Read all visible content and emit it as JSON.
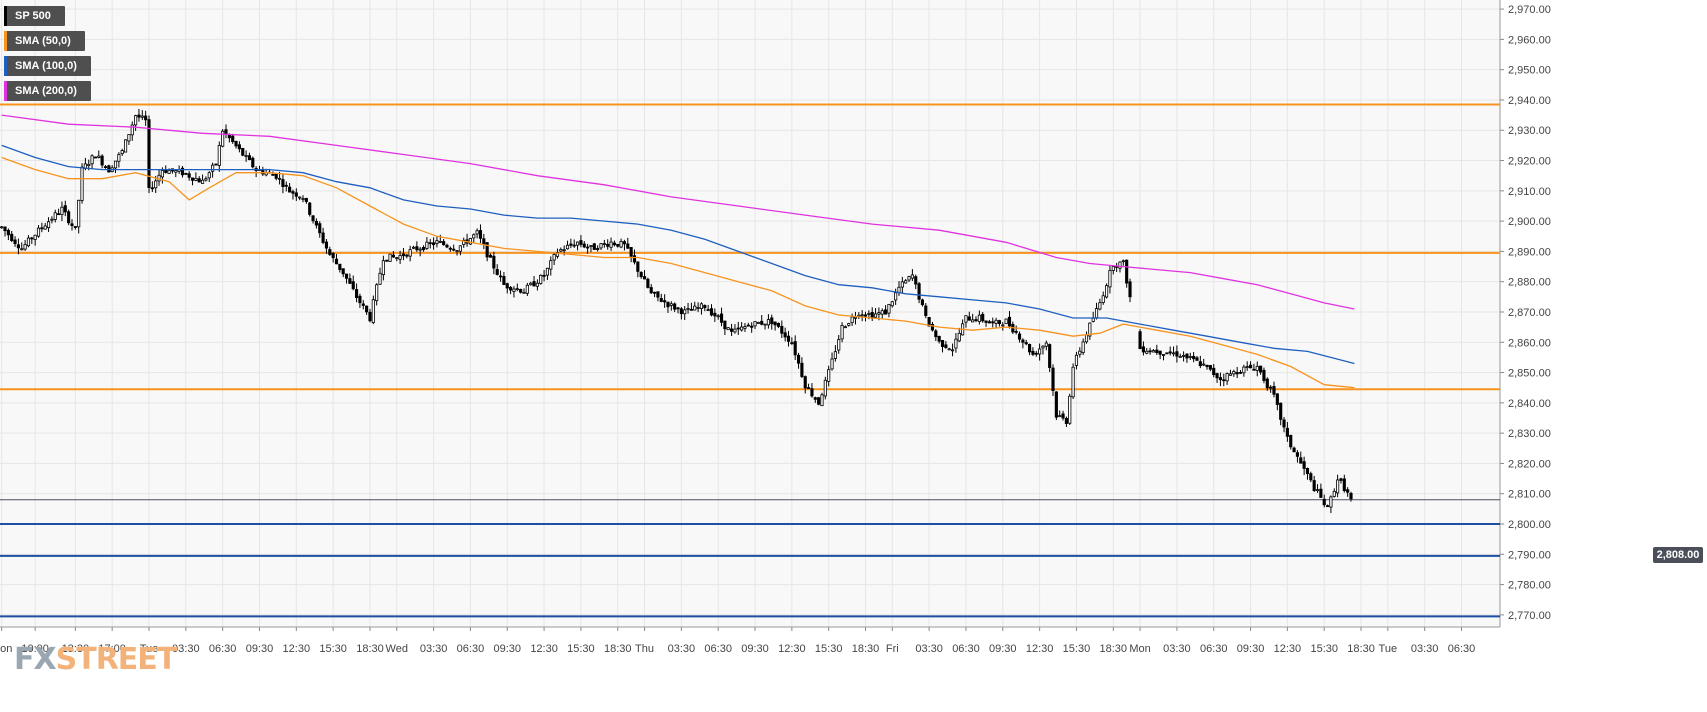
{
  "legend": {
    "items": [
      {
        "label": "SP 500",
        "color": "#000000"
      },
      {
        "label": "SMA (50,0)",
        "color": "#f7931e"
      },
      {
        "label": "SMA (100,0)",
        "color": "#1e5fbf"
      },
      {
        "label": "SMA (200,0)",
        "color": "#e033e0"
      }
    ]
  },
  "price_badge": "2,808.00",
  "logo": {
    "part1": "FX",
    "part2": "STREET"
  },
  "chart_data": {
    "type": "candlestick",
    "title": "",
    "xlabel": "",
    "ylabel": "",
    "ylim": [
      2766,
      2973
    ],
    "y_ticks": [
      "2,970.00",
      "2,960.00",
      "2,950.00",
      "2,940.00",
      "2,930.00",
      "2,920.00",
      "2,910.00",
      "2,900.00",
      "2,890.00",
      "2,880.00",
      "2,870.00",
      "2,860.00",
      "2,850.00",
      "2,840.00",
      "2,830.00",
      "2,820.00",
      "2,810.00",
      "2,800.00",
      "2,790.00",
      "2,780.00",
      "2,770.00"
    ],
    "y_tick_values": [
      2970,
      2960,
      2950,
      2940,
      2930,
      2920,
      2910,
      2900,
      2890,
      2880,
      2870,
      2860,
      2850,
      2840,
      2830,
      2820,
      2810,
      2800,
      2790,
      2780,
      2770
    ],
    "x_ticks": [
      "Mon",
      "10:00",
      "13:30",
      "17:00",
      "Tue",
      "03:30",
      "06:30",
      "09:30",
      "12:30",
      "15:30",
      "18:30",
      "Wed",
      "03:30",
      "06:30",
      "09:30",
      "12:30",
      "15:30",
      "18:30",
      "Thu",
      "03:30",
      "06:30",
      "09:30",
      "12:30",
      "15:30",
      "18:30",
      "Fri",
      "03:30",
      "06:30",
      "09:30",
      "12:30",
      "15:30",
      "18:30",
      "Mon",
      "03:30",
      "06:30",
      "09:30",
      "12:30",
      "15:30",
      "18:30",
      "Tue",
      "03:30",
      "06:30"
    ],
    "x_tick_index": [
      0,
      10,
      22,
      33,
      44,
      55,
      66,
      77,
      88,
      99,
      110,
      118,
      129,
      140,
      151,
      162,
      173,
      184,
      192,
      203,
      214,
      225,
      236,
      247,
      258,
      266,
      277,
      288,
      299,
      310,
      321,
      332,
      340,
      351,
      362,
      373,
      384,
      395,
      406,
      414,
      425,
      436
    ],
    "x_count": 448,
    "grid": true,
    "current_price": 2808.0,
    "horizontal_levels": [
      {
        "value": 2938.5,
        "color": "#f7931e"
      },
      {
        "value": 2889.5,
        "color": "#f7931e"
      },
      {
        "value": 2844.5,
        "color": "#f7931e"
      },
      {
        "value": 2800.0,
        "color": "#1e4fa0"
      },
      {
        "value": 2789.5,
        "color": "#1e4fa0"
      },
      {
        "value": 2769.5,
        "color": "#1e4fa0"
      }
    ],
    "price_anchors": [
      [
        0,
        2898
      ],
      [
        6,
        2891
      ],
      [
        12,
        2898
      ],
      [
        18,
        2904
      ],
      [
        22,
        2897
      ],
      [
        24,
        2917
      ],
      [
        28,
        2922
      ],
      [
        32,
        2917
      ],
      [
        36,
        2923
      ],
      [
        40,
        2935
      ],
      [
        43,
        2933
      ],
      [
        44,
        2910
      ],
      [
        48,
        2917
      ],
      [
        54,
        2916
      ],
      [
        60,
        2913
      ],
      [
        64,
        2919
      ],
      [
        66,
        2930
      ],
      [
        72,
        2922
      ],
      [
        76,
        2917
      ],
      [
        82,
        2915
      ],
      [
        86,
        2910
      ],
      [
        90,
        2908
      ],
      [
        94,
        2898
      ],
      [
        98,
        2889
      ],
      [
        102,
        2883
      ],
      [
        106,
        2875
      ],
      [
        110,
        2868
      ],
      [
        114,
        2888
      ],
      [
        118,
        2888
      ],
      [
        124,
        2891
      ],
      [
        130,
        2893
      ],
      [
        136,
        2891
      ],
      [
        142,
        2896
      ],
      [
        146,
        2887
      ],
      [
        150,
        2879
      ],
      [
        156,
        2877
      ],
      [
        162,
        2882
      ],
      [
        166,
        2890
      ],
      [
        172,
        2893
      ],
      [
        176,
        2891
      ],
      [
        182,
        2893
      ],
      [
        186,
        2892
      ],
      [
        190,
        2884
      ],
      [
        194,
        2876
      ],
      [
        200,
        2872
      ],
      [
        204,
        2870
      ],
      [
        210,
        2872
      ],
      [
        214,
        2868
      ],
      [
        218,
        2863
      ],
      [
        224,
        2866
      ],
      [
        230,
        2867
      ],
      [
        236,
        2860
      ],
      [
        240,
        2846
      ],
      [
        244,
        2840
      ],
      [
        247,
        2850
      ],
      [
        251,
        2865
      ],
      [
        256,
        2870
      ],
      [
        260,
        2869
      ],
      [
        264,
        2870
      ],
      [
        268,
        2878
      ],
      [
        272,
        2882
      ],
      [
        276,
        2868
      ],
      [
        280,
        2860
      ],
      [
        284,
        2858
      ],
      [
        288,
        2868
      ],
      [
        292,
        2868
      ],
      [
        296,
        2866
      ],
      [
        300,
        2867
      ],
      [
        304,
        2862
      ],
      [
        308,
        2856
      ],
      [
        312,
        2860
      ],
      [
        315,
        2836
      ],
      [
        318,
        2834
      ],
      [
        320,
        2852
      ],
      [
        324,
        2863
      ],
      [
        328,
        2873
      ],
      [
        332,
        2886
      ],
      [
        335,
        2886
      ],
      [
        340,
        2858
      ],
      [
        346,
        2857
      ],
      [
        352,
        2856
      ],
      [
        358,
        2853
      ],
      [
        364,
        2848
      ],
      [
        370,
        2851
      ],
      [
        375,
        2852
      ],
      [
        380,
        2842
      ],
      [
        384,
        2828
      ],
      [
        388,
        2820
      ],
      [
        392,
        2812
      ],
      [
        396,
        2805
      ],
      [
        399,
        2815
      ],
      [
        401,
        2812
      ],
      [
        403,
        2808
      ]
    ],
    "gaps": [
      [
        337,
        340
      ]
    ],
    "sma": [
      {
        "name": "SMA (50,0)",
        "color": "#f7931e",
        "points": [
          [
            0,
            2921
          ],
          [
            10,
            2917
          ],
          [
            20,
            2914
          ],
          [
            30,
            2914
          ],
          [
            40,
            2916
          ],
          [
            50,
            2913
          ],
          [
            56,
            2907
          ],
          [
            62,
            2911
          ],
          [
            70,
            2916
          ],
          [
            80,
            2916
          ],
          [
            90,
            2915
          ],
          [
            100,
            2911
          ],
          [
            110,
            2905
          ],
          [
            120,
            2899
          ],
          [
            130,
            2895
          ],
          [
            140,
            2893
          ],
          [
            150,
            2891
          ],
          [
            160,
            2890
          ],
          [
            170,
            2889
          ],
          [
            180,
            2888
          ],
          [
            190,
            2888
          ],
          [
            200,
            2886
          ],
          [
            210,
            2883
          ],
          [
            220,
            2880
          ],
          [
            230,
            2877
          ],
          [
            240,
            2872
          ],
          [
            250,
            2869
          ],
          [
            260,
            2868
          ],
          [
            270,
            2867
          ],
          [
            280,
            2865
          ],
          [
            290,
            2864
          ],
          [
            300,
            2865
          ],
          [
            310,
            2864
          ],
          [
            320,
            2862
          ],
          [
            328,
            2863
          ],
          [
            335,
            2866
          ],
          [
            345,
            2864
          ],
          [
            355,
            2862
          ],
          [
            365,
            2859
          ],
          [
            375,
            2856
          ],
          [
            385,
            2852
          ],
          [
            395,
            2846
          ],
          [
            404,
            2845
          ]
        ]
      },
      {
        "name": "SMA (100,0)",
        "color": "#1e5fbf",
        "points": [
          [
            0,
            2925
          ],
          [
            10,
            2921
          ],
          [
            20,
            2918
          ],
          [
            30,
            2917
          ],
          [
            40,
            2917
          ],
          [
            50,
            2917
          ],
          [
            60,
            2917
          ],
          [
            70,
            2917
          ],
          [
            80,
            2917
          ],
          [
            90,
            2916
          ],
          [
            100,
            2913
          ],
          [
            110,
            2911
          ],
          [
            120,
            2907
          ],
          [
            130,
            2905
          ],
          [
            140,
            2904
          ],
          [
            150,
            2902
          ],
          [
            160,
            2901
          ],
          [
            170,
            2901
          ],
          [
            180,
            2900
          ],
          [
            190,
            2899
          ],
          [
            200,
            2897
          ],
          [
            210,
            2894
          ],
          [
            220,
            2890
          ],
          [
            230,
            2886
          ],
          [
            240,
            2882
          ],
          [
            250,
            2879
          ],
          [
            260,
            2878
          ],
          [
            270,
            2876
          ],
          [
            280,
            2875
          ],
          [
            290,
            2874
          ],
          [
            300,
            2873
          ],
          [
            310,
            2871
          ],
          [
            320,
            2868
          ],
          [
            330,
            2868
          ],
          [
            340,
            2866
          ],
          [
            350,
            2864
          ],
          [
            360,
            2862
          ],
          [
            370,
            2860
          ],
          [
            380,
            2858
          ],
          [
            390,
            2857
          ],
          [
            404,
            2853
          ]
        ]
      },
      {
        "name": "SMA (200,0)",
        "color": "#e033e0",
        "points": [
          [
            0,
            2935
          ],
          [
            20,
            2932
          ],
          [
            40,
            2931
          ],
          [
            60,
            2929
          ],
          [
            80,
            2928
          ],
          [
            100,
            2925
          ],
          [
            120,
            2922
          ],
          [
            140,
            2919
          ],
          [
            160,
            2915
          ],
          [
            180,
            2912
          ],
          [
            200,
            2908
          ],
          [
            220,
            2905
          ],
          [
            240,
            2902
          ],
          [
            260,
            2899
          ],
          [
            280,
            2897
          ],
          [
            300,
            2893
          ],
          [
            315,
            2888
          ],
          [
            325,
            2886
          ],
          [
            335,
            2885
          ],
          [
            345,
            2884
          ],
          [
            355,
            2883
          ],
          [
            365,
            2881
          ],
          [
            375,
            2879
          ],
          [
            385,
            2876
          ],
          [
            395,
            2873
          ],
          [
            404,
            2871
          ]
        ]
      }
    ]
  }
}
